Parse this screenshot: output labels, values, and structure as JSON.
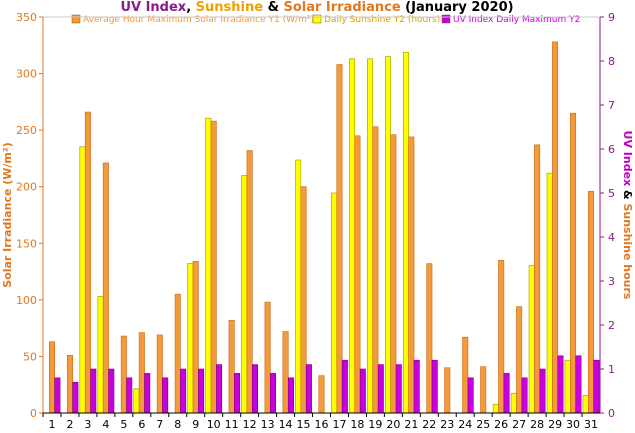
{
  "chart_data": {
    "type": "bar",
    "title_parts": [
      {
        "text": "UV Index",
        "color": "#8b1a8b"
      },
      {
        "text": ", ",
        "color": "#000000"
      },
      {
        "text": "Sunshine",
        "color": "#f0a000"
      },
      {
        "text": " & ",
        "color": "#000000"
      },
      {
        "text": "Solar Irradiance",
        "color": "#e07820"
      },
      {
        "text": " (January 2020)",
        "color": "#000000"
      }
    ],
    "ylabel_left": "Solar Irradiance (W/m²)",
    "ylabel_right_parts": [
      {
        "text": "UV Index",
        "color": "#c000c0"
      },
      {
        "text": " & ",
        "color": "#000000"
      },
      {
        "text": "Sunshine hours",
        "color": "#e07820"
      }
    ],
    "ylim_left": [
      0,
      350
    ],
    "yticks_left": [
      "0",
      "50",
      "100",
      "150",
      "200",
      "250",
      "300",
      "350"
    ],
    "ylim_right": [
      0,
      9
    ],
    "yticks_right": [
      "0",
      "1",
      "2",
      "3",
      "4",
      "5",
      "6",
      "7",
      "8",
      "9"
    ],
    "categories": [
      "1",
      "2",
      "3",
      "4",
      "5",
      "6",
      "7",
      "8",
      "9",
      "10",
      "11",
      "12",
      "13",
      "14",
      "15",
      "16",
      "17",
      "18",
      "19",
      "20",
      "21",
      "22",
      "23",
      "24",
      "25",
      "26",
      "27",
      "28",
      "29",
      "30",
      "31"
    ],
    "legend_position": "top",
    "grid": false,
    "series": [
      {
        "name": "Average Hour Maximum Solar Irradiance Y1 (W/m²)",
        "axis": "left",
        "color": "#f59a3c",
        "values": [
          63,
          51,
          266,
          221,
          68,
          71,
          69,
          105,
          134,
          258,
          82,
          232,
          98,
          72,
          200,
          33,
          308,
          245,
          253,
          246,
          244,
          132,
          40,
          67,
          41,
          135,
          94,
          237,
          328,
          265,
          196
        ]
      },
      {
        "name": "Daily Sunshine Y2 (hours)",
        "axis": "right",
        "color": "#ffff00",
        "values": [
          0,
          0,
          6.05,
          2.65,
          0,
          0.55,
          0,
          0,
          3.4,
          6.7,
          0,
          5.4,
          0,
          0,
          5.75,
          0,
          5.0,
          8.05,
          8.05,
          8.1,
          8.2,
          0,
          0,
          0,
          0,
          0.2,
          0.45,
          3.35,
          5.45,
          1.2,
          0.4
        ]
      },
      {
        "name": "UV Index Daily Maximum Y2",
        "axis": "right",
        "color": "#c800e0",
        "values": [
          0.8,
          0.7,
          1.0,
          1.0,
          0.8,
          0.9,
          0.8,
          1.0,
          1.0,
          1.1,
          0.9,
          1.1,
          0.9,
          0.8,
          1.1,
          0,
          1.2,
          1.0,
          1.1,
          1.1,
          1.2,
          1.2,
          0,
          0.8,
          0,
          0.9,
          0.8,
          1.0,
          1.3,
          1.3,
          1.2
        ]
      }
    ]
  },
  "colors": {
    "title_uv": "#8b1a8b",
    "left_axis_label": "#e07820",
    "right_axis": "#8b1a8b",
    "plot_border": "#c8c8c8"
  }
}
